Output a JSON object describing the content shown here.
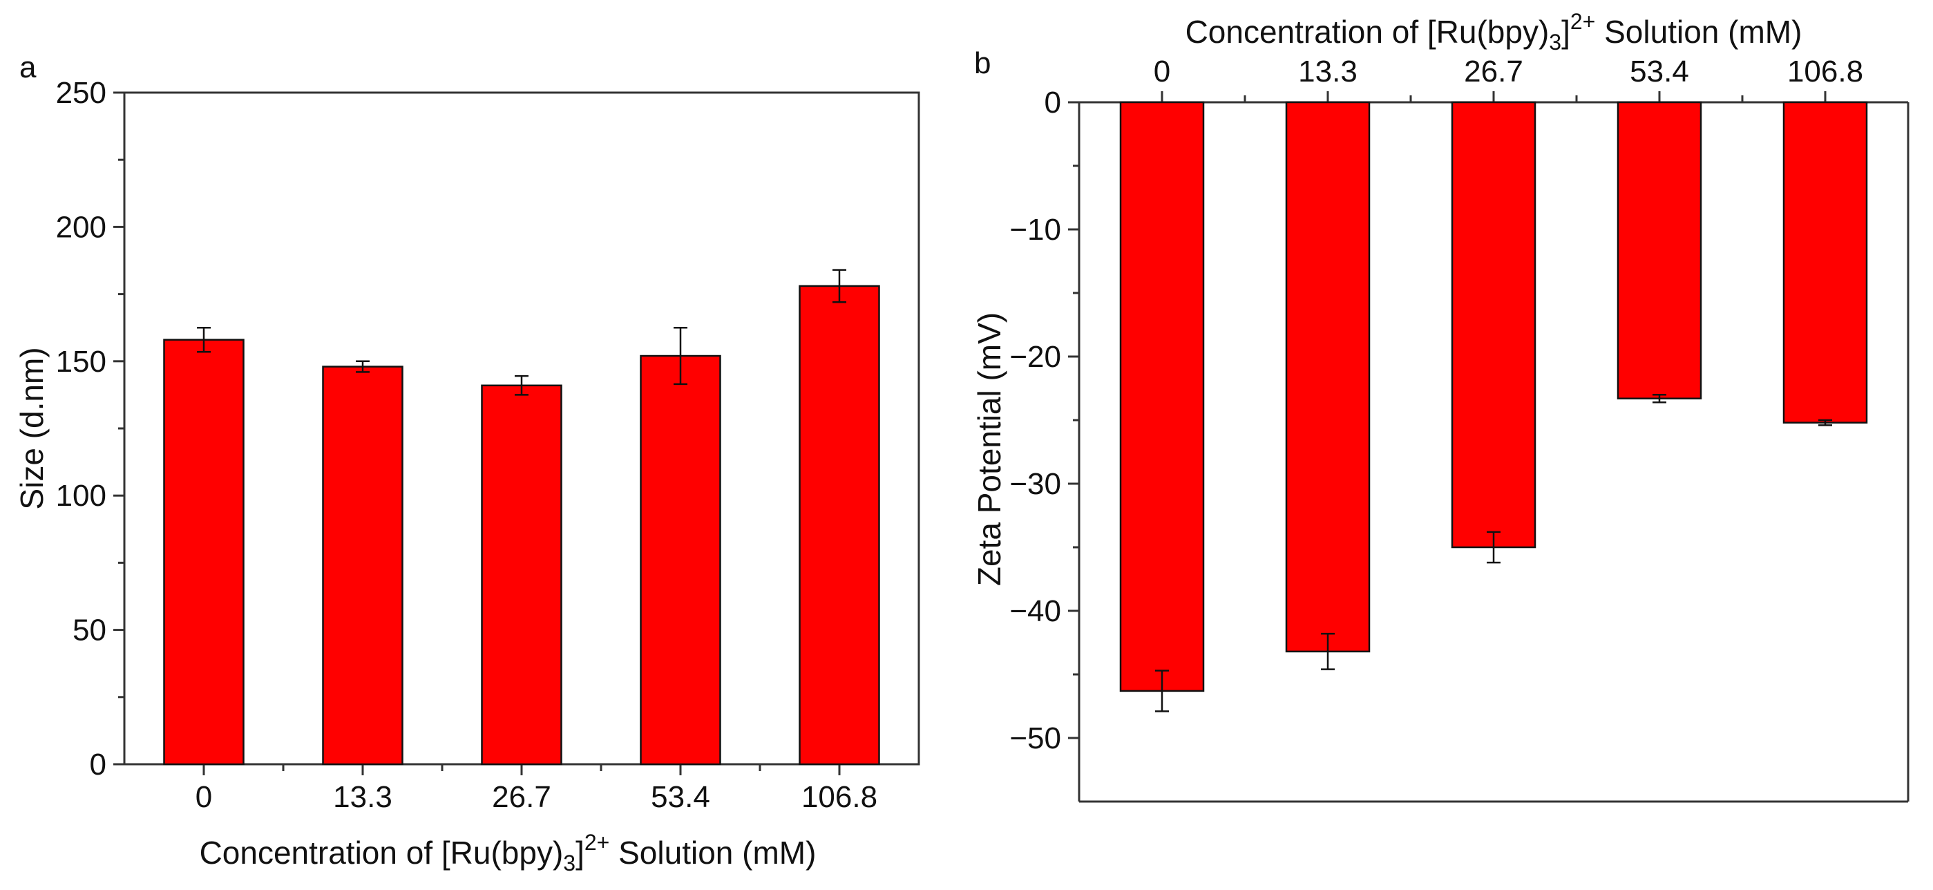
{
  "colors": {
    "bar": "#ff0000",
    "bar_edge": "#111111",
    "axis": "#333333"
  },
  "chart_data": [
    {
      "type": "bar",
      "panel_label": "a",
      "categories": [
        "0",
        "13.3",
        "26.7",
        "53.4",
        "106.8"
      ],
      "values": [
        158,
        148,
        141,
        152,
        178
      ],
      "errors": [
        4.5,
        2,
        3.5,
        10.5,
        6
      ],
      "ylim": [
        0,
        250
      ],
      "yticks": [
        "0",
        "50",
        "100",
        "150",
        "200",
        "250"
      ],
      "ylabel": "Size (d.nm)",
      "xlabel": {
        "pre": "Concentration of [Ru(bpy)",
        "sub": "3",
        "post1": "]",
        "sup": "2+",
        "post2": " Solution (mM)"
      },
      "xaxis_position": "bottom",
      "grid": false
    },
    {
      "type": "bar",
      "panel_label": "b",
      "categories": [
        "0",
        "13.3",
        "26.7",
        "53.4",
        "106.8"
      ],
      "values": [
        -46.3,
        -43.2,
        -35,
        -23.3,
        -25.2
      ],
      "errors": [
        1.6,
        1.4,
        1.2,
        0.3,
        0.2
      ],
      "ylim": [
        -55,
        0
      ],
      "yticks": [
        "0",
        "−10",
        "−20",
        "−30",
        "−40",
        "−50"
      ],
      "ylabel": "Zeta Potential (mV)",
      "xlabel": {
        "pre": "Concentration of [Ru(bpy)",
        "sub": "3",
        "post1": "]",
        "sup": "2+",
        "post2": " Solution (mM)"
      },
      "xaxis_position": "top",
      "grid": false
    }
  ]
}
